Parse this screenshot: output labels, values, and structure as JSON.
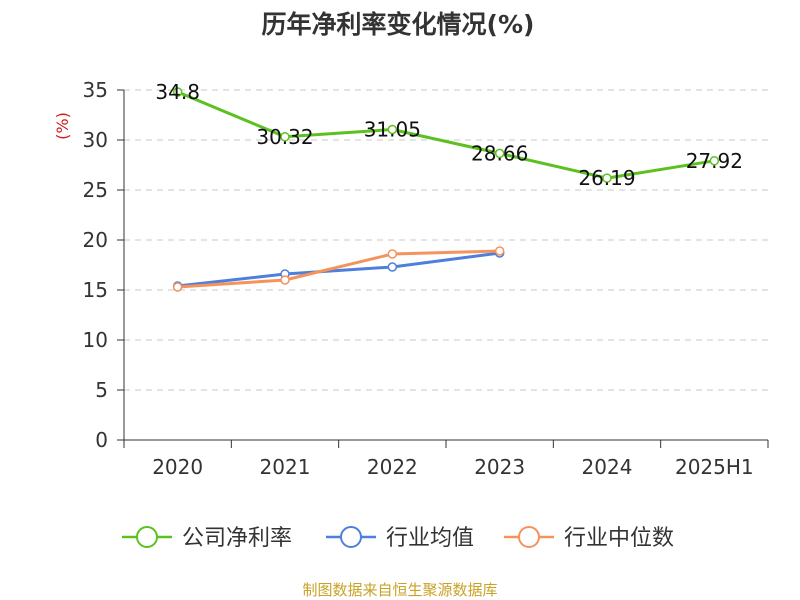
{
  "chart_data": {
    "type": "line",
    "title": "历年净利率变化情况(%)",
    "ylabel": "(%)",
    "categories": [
      "2020",
      "2021",
      "2022",
      "2023",
      "2024",
      "2025H1"
    ],
    "ylim": [
      0,
      35
    ],
    "yticks": [
      "0",
      "5",
      "10",
      "15",
      "20",
      "25",
      "30",
      "35"
    ],
    "grid": true,
    "legend_position": "bottom",
    "series": [
      {
        "name": "公司净利率",
        "color": "#5cc120",
        "values": [
          34.8,
          30.32,
          31.05,
          28.66,
          26.19,
          27.92
        ],
        "labels": [
          "34.8",
          "30.32",
          "31.05",
          "28.66",
          "26.19",
          "27.92"
        ]
      },
      {
        "name": "行业均值",
        "color": "#4f7fdc",
        "values": [
          15.4,
          16.6,
          17.3,
          18.7,
          null,
          null
        ]
      },
      {
        "name": "行业中位数",
        "color": "#f5935b",
        "values": [
          15.3,
          16.0,
          18.6,
          18.9,
          null,
          null
        ]
      }
    ],
    "source": "制图数据来自恒生聚源数据库",
    "source_color": "#c9a227",
    "ylabel_color": "#d11919"
  }
}
